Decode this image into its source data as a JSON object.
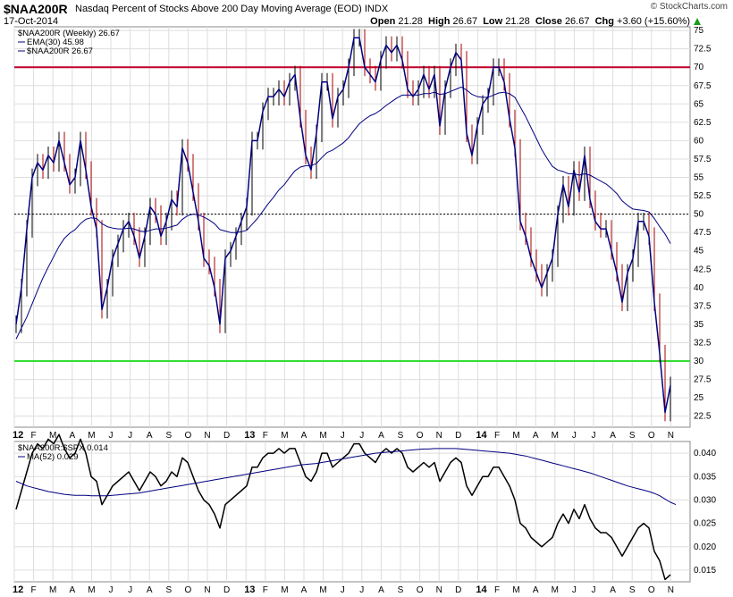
{
  "header": {
    "symbol": "$NAA200R",
    "description": "Nasdaq Percent of Stocks Above 200 Day Moving Average (EOD)",
    "exchange": "INDX",
    "date": "17-Oct-2014",
    "brand": "© StockCharts.com",
    "open_label": "Open",
    "open": "21.28",
    "high_label": "High",
    "high": "26.67",
    "low_label": "Low",
    "low": "21.28",
    "close_label": "Close",
    "close": "26.67",
    "chg_label": "Chg",
    "chg": "+3.60 (+15.60%)",
    "chg_arrow": "▲"
  },
  "colors": {
    "price": "#000080",
    "ema": "#000080",
    "upper_line": "#c0002a",
    "lower_line": "#33dd33",
    "midline": "#000000",
    "ratio": "#000000",
    "ratio_ma": "#000080",
    "down_wick": "#aa0000",
    "grid": "#dddddd"
  },
  "chart_data": [
    {
      "type": "line",
      "panel": "main",
      "legend": [
        "$NAA200R (Weekly) 26.67",
        "EMA(30) 45.98",
        "$NAA200R 26.67"
      ],
      "x_labels": [
        "12",
        "F",
        "M",
        "A",
        "M",
        "J",
        "J",
        "A",
        "S",
        "O",
        "N",
        "D",
        "13",
        "F",
        "M",
        "A",
        "M",
        "J",
        "J",
        "A",
        "S",
        "O",
        "N",
        "D",
        "14",
        "F",
        "M",
        "A",
        "M",
        "J",
        "J",
        "A",
        "S",
        "O",
        "N"
      ],
      "y_ticks": [
        22.5,
        25,
        27.5,
        30,
        32.5,
        35,
        37.5,
        40,
        42.5,
        45,
        47.5,
        50,
        52.5,
        55,
        57.5,
        60,
        62.5,
        65,
        67.5,
        70,
        72.5,
        75
      ],
      "ylim": [
        21.0,
        75.5
      ],
      "horizontal_lines": [
        70,
        50,
        30
      ],
      "series": [
        {
          "name": "$NAA200R",
          "values": [
            35,
            40,
            48,
            55,
            57,
            56,
            58,
            57,
            60,
            57,
            54,
            55,
            60,
            56,
            51,
            48,
            37,
            40,
            44,
            46,
            48,
            49,
            47,
            44,
            47,
            51,
            50,
            47,
            49,
            52,
            51,
            59,
            57,
            53,
            49,
            44,
            43,
            40,
            35,
            44,
            45,
            47,
            49,
            51,
            60,
            60,
            64,
            66,
            66,
            67,
            66,
            68,
            69,
            63,
            58,
            56,
            61,
            68,
            68,
            63,
            66,
            67,
            70,
            74,
            74,
            70,
            69,
            68,
            71,
            73,
            72,
            73,
            71,
            67,
            66,
            67,
            69,
            67,
            69,
            62,
            67,
            70,
            72,
            71,
            61,
            58,
            62,
            65,
            66,
            70,
            70,
            68,
            63,
            59,
            49,
            47,
            44,
            42,
            40,
            42,
            44,
            50,
            54,
            51,
            56,
            53,
            58,
            52,
            49,
            48,
            48,
            45,
            42,
            38,
            42,
            44,
            49,
            49,
            47,
            38,
            31,
            23,
            26.67
          ]
        },
        {
          "name": "EMA(30)",
          "values": [
            33,
            34.5,
            36,
            37.8,
            39.6,
            41.3,
            42.8,
            44.2,
            45.6,
            46.7,
            47.4,
            47.9,
            48.7,
            49.3,
            49.5,
            49.4,
            48.7,
            48.3,
            48.1,
            48.0,
            48.0,
            48.1,
            48.0,
            47.7,
            47.6,
            47.8,
            48.0,
            48.0,
            48.1,
            48.3,
            48.5,
            49.3,
            49.8,
            50.0,
            49.9,
            49.6,
            49.2,
            48.7,
            47.9,
            47.7,
            47.5,
            47.5,
            47.6,
            47.8,
            48.6,
            49.4,
            50.4,
            51.4,
            52.3,
            53.3,
            54.0,
            55.0,
            55.9,
            56.4,
            56.6,
            56.6,
            56.9,
            57.7,
            58.4,
            58.7,
            59.2,
            59.7,
            60.4,
            61.4,
            62.3,
            62.9,
            63.4,
            63.7,
            64.2,
            64.8,
            65.3,
            65.8,
            66.2,
            66.2,
            66.2,
            66.2,
            66.4,
            66.4,
            66.6,
            66.3,
            66.4,
            66.7,
            67.0,
            67.3,
            66.9,
            66.3,
            66.0,
            65.9,
            65.9,
            66.2,
            66.5,
            66.6,
            66.4,
            65.9,
            64.6,
            63.3,
            61.8,
            60.3,
            58.8,
            57.6,
            56.5,
            56.0,
            55.8,
            55.5,
            55.5,
            55.3,
            55.5,
            55.3,
            54.9,
            54.5,
            54.1,
            53.5,
            52.8,
            51.8,
            51.2,
            50.7,
            50.6,
            50.5,
            50.3,
            49.4,
            48.3,
            47.3,
            46.0
          ]
        }
      ]
    },
    {
      "type": "line",
      "panel": "ratio",
      "legend": [
        "$NAA200R:$SPX 0.014",
        "MA(52) 0.029"
      ],
      "x_labels": [
        "12",
        "F",
        "M",
        "A",
        "M",
        "J",
        "J",
        "A",
        "S",
        "O",
        "N",
        "D",
        "13",
        "F",
        "M",
        "A",
        "M",
        "J",
        "J",
        "A",
        "S",
        "O",
        "N",
        "D",
        "14",
        "F",
        "M",
        "A",
        "M",
        "J",
        "J",
        "A",
        "S",
        "O",
        "N"
      ],
      "y_ticks": [
        0.015,
        0.02,
        0.025,
        0.03,
        0.035,
        0.04
      ],
      "ylim": [
        0.0125,
        0.0425
      ],
      "series": [
        {
          "name": "$NAA200R:$SPX",
          "values": [
            0.028,
            0.032,
            0.036,
            0.04,
            0.042,
            0.041,
            0.043,
            0.042,
            0.044,
            0.041,
            0.039,
            0.04,
            0.043,
            0.04,
            0.035,
            0.034,
            0.029,
            0.031,
            0.033,
            0.034,
            0.035,
            0.036,
            0.034,
            0.032,
            0.034,
            0.036,
            0.035,
            0.033,
            0.034,
            0.036,
            0.035,
            0.039,
            0.038,
            0.035,
            0.032,
            0.03,
            0.029,
            0.027,
            0.024,
            0.029,
            0.03,
            0.031,
            0.032,
            0.033,
            0.037,
            0.037,
            0.039,
            0.04,
            0.04,
            0.041,
            0.04,
            0.041,
            0.041,
            0.038,
            0.035,
            0.034,
            0.036,
            0.04,
            0.04,
            0.037,
            0.038,
            0.039,
            0.04,
            0.042,
            0.042,
            0.04,
            0.039,
            0.038,
            0.04,
            0.041,
            0.04,
            0.041,
            0.04,
            0.037,
            0.036,
            0.037,
            0.038,
            0.037,
            0.038,
            0.034,
            0.036,
            0.038,
            0.039,
            0.038,
            0.033,
            0.031,
            0.033,
            0.035,
            0.035,
            0.037,
            0.037,
            0.035,
            0.033,
            0.03,
            0.025,
            0.024,
            0.022,
            0.021,
            0.02,
            0.021,
            0.022,
            0.025,
            0.027,
            0.025,
            0.028,
            0.026,
            0.029,
            0.026,
            0.024,
            0.023,
            0.023,
            0.022,
            0.02,
            0.018,
            0.02,
            0.022,
            0.024,
            0.025,
            0.024,
            0.019,
            0.017,
            0.013,
            0.014
          ]
        },
        {
          "name": "MA(52)",
          "values": [
            0.034,
            0.0335,
            0.033,
            0.0327,
            0.0324,
            0.0321,
            0.0318,
            0.0316,
            0.0314,
            0.0312,
            0.0311,
            0.031,
            0.031,
            0.031,
            0.0309,
            0.0309,
            0.0309,
            0.0309,
            0.031,
            0.0311,
            0.0312,
            0.0313,
            0.0314,
            0.0315,
            0.0317,
            0.0319,
            0.0321,
            0.0323,
            0.0325,
            0.0327,
            0.0329,
            0.0331,
            0.0333,
            0.0335,
            0.0337,
            0.0339,
            0.0341,
            0.0343,
            0.0345,
            0.0347,
            0.0349,
            0.0351,
            0.0353,
            0.0355,
            0.0357,
            0.0359,
            0.0361,
            0.0363,
            0.0365,
            0.0367,
            0.0369,
            0.0371,
            0.0373,
            0.0375,
            0.0376,
            0.0377,
            0.0378,
            0.038,
            0.0382,
            0.0384,
            0.0386,
            0.0388,
            0.039,
            0.0392,
            0.0394,
            0.0396,
            0.0398,
            0.04,
            0.0401,
            0.0402,
            0.0403,
            0.0404,
            0.0405,
            0.0406,
            0.0407,
            0.0408,
            0.0409,
            0.0409,
            0.041,
            0.041,
            0.041,
            0.041,
            0.041,
            0.0409,
            0.0408,
            0.0407,
            0.0406,
            0.0405,
            0.0404,
            0.0403,
            0.0402,
            0.0401,
            0.04,
            0.0398,
            0.0396,
            0.0394,
            0.0391,
            0.0388,
            0.0385,
            0.0382,
            0.0379,
            0.0376,
            0.0373,
            0.037,
            0.0367,
            0.0364,
            0.0361,
            0.0358,
            0.0354,
            0.035,
            0.0346,
            0.0342,
            0.0338,
            0.0334,
            0.033,
            0.0327,
            0.0324,
            0.0321,
            0.0318,
            0.0314,
            0.0309,
            0.0302,
            0.0295,
            0.029
          ]
        }
      ]
    }
  ]
}
